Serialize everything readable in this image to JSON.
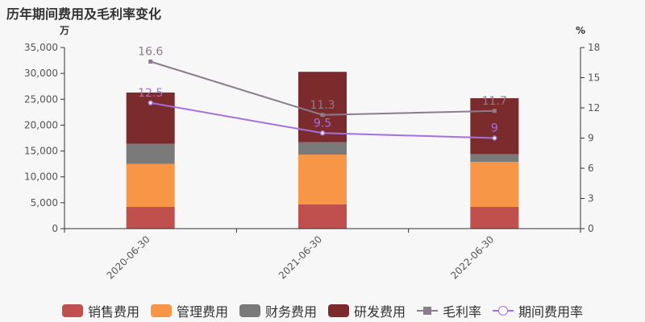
{
  "chart_data": {
    "type": "bar",
    "title": "历年期间费用及毛利率变化",
    "categories": [
      "2020-06-30",
      "2021-06-30",
      "2022-06-30"
    ],
    "left_unit": "万",
    "right_unit": "%",
    "ylim": [
      0,
      35000
    ],
    "y2lim": [
      0,
      18
    ],
    "yticks": [
      "0",
      "5,000",
      "10,000",
      "15,000",
      "20,000",
      "25,000",
      "30,000",
      "35,000"
    ],
    "y2ticks": [
      "0",
      "3",
      "6",
      "9",
      "12",
      "15",
      "18"
    ],
    "stacked_series": [
      {
        "name": "销售费用",
        "color": "#c0504d",
        "values": [
          4200,
          4700,
          4200
        ]
      },
      {
        "name": "管理费用",
        "color": "#f79646",
        "values": [
          8300,
          9600,
          8700
        ]
      },
      {
        "name": "财务费用",
        "color": "#7a7a7a",
        "values": [
          3900,
          2400,
          1500
        ]
      },
      {
        "name": "研发费用",
        "color": "#7b2b2b",
        "values": [
          9900,
          13600,
          10800
        ]
      }
    ],
    "line_series": [
      {
        "name": "毛利率",
        "color": "#8c7b8c",
        "marker": "square",
        "values": [
          16.6,
          11.3,
          11.7
        ],
        "labels": [
          "16.6",
          "11.3",
          "11.7"
        ]
      },
      {
        "name": "期间费用率",
        "color": "#a66fe0",
        "marker": "circle",
        "values": [
          12.5,
          9.5,
          9.0
        ],
        "labels": [
          "12.5",
          "9.5",
          "9"
        ]
      }
    ],
    "legend_position": "bottom"
  }
}
